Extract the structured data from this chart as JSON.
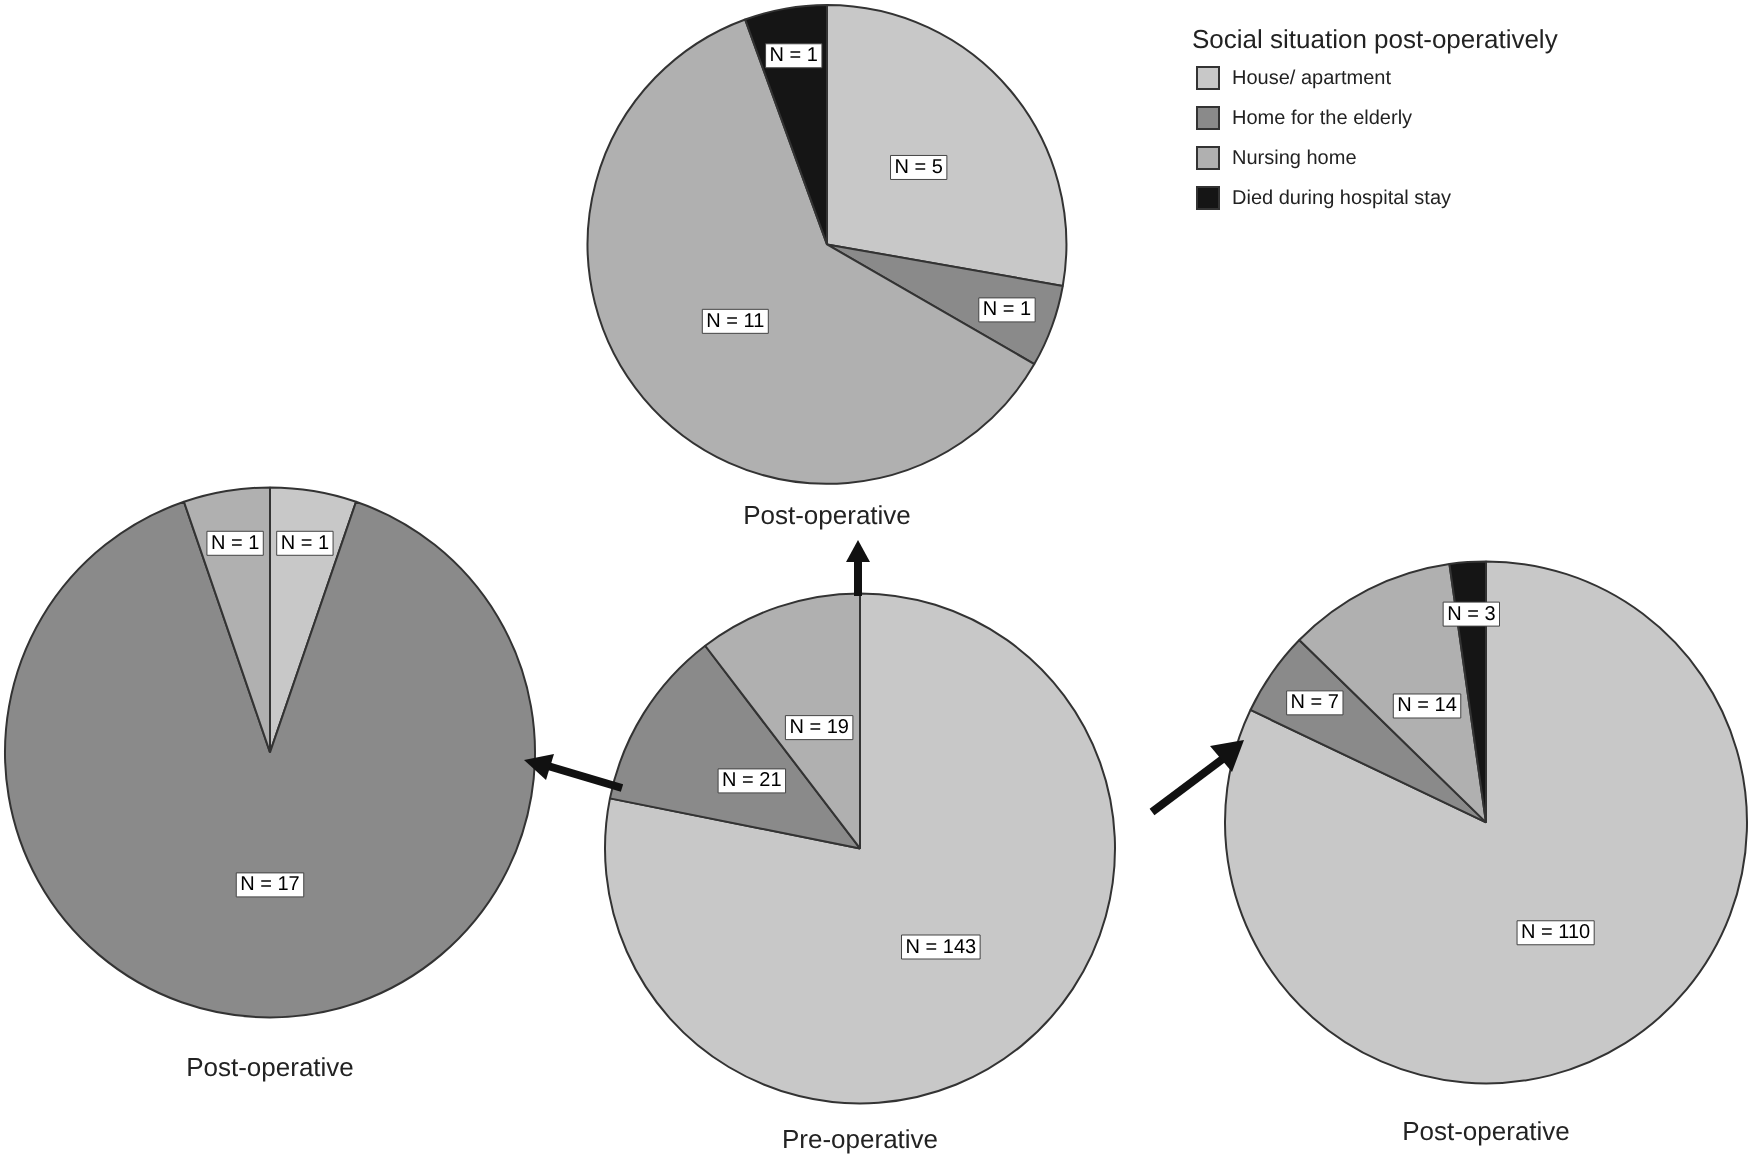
{
  "chart_data": [
    {
      "type": "pie",
      "title": "Post-operative",
      "legend_title": "Social situation post-operatively",
      "legend": "right",
      "categories": [
        "House/ apartment",
        "Home for the elderly",
        "Nursing home",
        "Died during hospital stay"
      ],
      "values": [
        5,
        1,
        11,
        1
      ],
      "colors": [
        "#c8c8c8",
        "#8a8a8a",
        "#b0b0b0",
        "#151515"
      ],
      "value_labels": [
        "N = 5",
        "N = 1",
        "N = 11",
        "N = 1"
      ]
    },
    {
      "type": "pie",
      "title": "Post-operative",
      "categories": [
        null,
        null,
        null
      ],
      "values": [
        1,
        17,
        1
      ],
      "colors": [
        "#c8c8c8",
        "#8a8a8a",
        "#b0b0b0"
      ],
      "value_labels": [
        "N = 1",
        "N = 17",
        "N = 1"
      ]
    },
    {
      "type": "pie",
      "title": "Pre-operative",
      "categories": [
        null,
        null,
        null
      ],
      "values": [
        143,
        21,
        19
      ],
      "colors": [
        "#c8c8c8",
        "#8a8a8a",
        "#b0b0b0"
      ],
      "value_labels": [
        "N = 143",
        "N = 21",
        "N = 19"
      ]
    },
    {
      "type": "pie",
      "title": "Post-operative",
      "categories": [
        null,
        null,
        null,
        null
      ],
      "values": [
        110,
        7,
        14,
        3
      ],
      "colors": [
        "#c8c8c8",
        "#8a8a8a",
        "#b0b0b0",
        "#151515"
      ],
      "value_labels": [
        "N = 110",
        "N = 7",
        "N = 14",
        "N = 3"
      ]
    }
  ]
}
